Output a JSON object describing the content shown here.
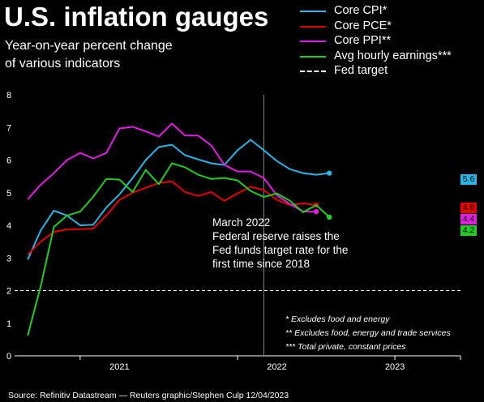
{
  "title": "U.S. inflation gauges",
  "subtitle_lines": [
    "Year-on-year percent change",
    "of various indicators"
  ],
  "legend": [
    {
      "label": "Core CPI*",
      "color": "#29b6e6",
      "dashed": false
    },
    {
      "label": "Core PCE*",
      "color": "#e60000",
      "dashed": false
    },
    {
      "label": "Core PPI**",
      "color": "#e01ee0",
      "dashed": false
    },
    {
      "label": "Avg hourly earnings***",
      "color": "#23cc23",
      "dashed": false
    },
    {
      "label": "Fed target",
      "color": "#ffffff",
      "dashed": true
    }
  ],
  "annotation_lines": [
    "March 2022",
    "Federal reserve raises the",
    "Fed funds target rate for the",
    "first time since 2018"
  ],
  "footnotes": [
    "* Excludes food and energy",
    "** Excludes food, energy and trade services",
    "*** Total private, constant prices"
  ],
  "source": "Source: Refinitiv Datastream — Reuters graphic/Stephen Culp 12/04/2023",
  "chart_data": {
    "type": "line",
    "x_unit": "month",
    "x_range": [
      "2020-08",
      "2023-06"
    ],
    "x_tick_labels": [
      "2021",
      "2022",
      "2023"
    ],
    "ylim": [
      0,
      8
    ],
    "y_ticks": [
      0,
      1,
      2,
      3,
      4,
      5,
      6,
      7,
      8
    ],
    "grid": false,
    "reference_line": {
      "label": "Fed target",
      "y": 2
    },
    "event_marker": {
      "label": "March 2022",
      "x": "2022-03"
    },
    "series": [
      {
        "name": "Core CPI*",
        "color": "#29b6e6",
        "end_label": "5.6",
        "points": [
          [
            "2020-09",
            2.95
          ],
          [
            "2020-10",
            3.85
          ],
          [
            "2020-11",
            4.45
          ],
          [
            "2020-12",
            4.3
          ],
          [
            "2021-01",
            4.0
          ],
          [
            "2021-02",
            4.02
          ],
          [
            "2021-03",
            4.55
          ],
          [
            "2021-04",
            4.95
          ],
          [
            "2021-05",
            5.45
          ],
          [
            "2021-06",
            6.0
          ],
          [
            "2021-07",
            6.4
          ],
          [
            "2021-08",
            6.47
          ],
          [
            "2021-09",
            6.15
          ],
          [
            "2021-10",
            6.02
          ],
          [
            "2021-11",
            5.9
          ],
          [
            "2021-12",
            5.85
          ],
          [
            "2022-01",
            6.3
          ],
          [
            "2022-02",
            6.62
          ],
          [
            "2022-03",
            6.3
          ],
          [
            "2022-04",
            5.97
          ],
          [
            "2022-05",
            5.72
          ],
          [
            "2022-06",
            5.6
          ],
          [
            "2022-07",
            5.55
          ],
          [
            "2022-08",
            5.6
          ]
        ]
      },
      {
        "name": "Core PCE*",
        "color": "#e60000",
        "end_label": "4.6",
        "points": [
          [
            "2020-09",
            3.1
          ],
          [
            "2020-10",
            3.5
          ],
          [
            "2020-11",
            3.8
          ],
          [
            "2020-12",
            3.87
          ],
          [
            "2021-01",
            3.88
          ],
          [
            "2021-02",
            3.9
          ],
          [
            "2021-03",
            4.3
          ],
          [
            "2021-04",
            4.78
          ],
          [
            "2021-05",
            5.0
          ],
          [
            "2021-06",
            5.15
          ],
          [
            "2021-07",
            5.3
          ],
          [
            "2021-08",
            5.35
          ],
          [
            "2021-09",
            5.02
          ],
          [
            "2021-10",
            4.9
          ],
          [
            "2021-11",
            5.02
          ],
          [
            "2021-12",
            4.75
          ],
          [
            "2022-01",
            4.98
          ],
          [
            "2022-02",
            5.18
          ],
          [
            "2022-03",
            5.08
          ],
          [
            "2022-04",
            4.78
          ],
          [
            "2022-05",
            4.62
          ],
          [
            "2022-06",
            4.67
          ],
          [
            "2022-07",
            4.62
          ]
        ]
      },
      {
        "name": "Core PPI**",
        "color": "#e01ee0",
        "end_label": "4.4",
        "points": [
          [
            "2020-09",
            4.8
          ],
          [
            "2020-10",
            5.25
          ],
          [
            "2020-11",
            5.6
          ],
          [
            "2020-12",
            6.0
          ],
          [
            "2021-01",
            6.22
          ],
          [
            "2021-02",
            6.05
          ],
          [
            "2021-03",
            6.22
          ],
          [
            "2021-04",
            6.97
          ],
          [
            "2021-05",
            7.02
          ],
          [
            "2021-06",
            6.88
          ],
          [
            "2021-07",
            6.72
          ],
          [
            "2021-08",
            7.12
          ],
          [
            "2021-09",
            6.75
          ],
          [
            "2021-10",
            6.75
          ],
          [
            "2021-11",
            6.45
          ],
          [
            "2021-12",
            5.85
          ],
          [
            "2022-01",
            5.65
          ],
          [
            "2022-02",
            5.65
          ],
          [
            "2022-03",
            5.45
          ],
          [
            "2022-04",
            4.92
          ],
          [
            "2022-05",
            4.65
          ],
          [
            "2022-06",
            4.42
          ],
          [
            "2022-07",
            4.42
          ]
        ]
      },
      {
        "name": "Avg hourly earnings***",
        "color": "#23cc23",
        "end_label": "4.2",
        "points": [
          [
            "2020-09",
            0.62
          ],
          [
            "2020-10",
            2.15
          ],
          [
            "2020-11",
            3.95
          ],
          [
            "2020-12",
            4.3
          ],
          [
            "2021-01",
            4.42
          ],
          [
            "2021-02",
            4.88
          ],
          [
            "2021-03",
            5.42
          ],
          [
            "2021-04",
            5.4
          ],
          [
            "2021-05",
            5.02
          ],
          [
            "2021-06",
            5.7
          ],
          [
            "2021-07",
            5.26
          ],
          [
            "2021-08",
            5.9
          ],
          [
            "2021-09",
            5.78
          ],
          [
            "2021-10",
            5.55
          ],
          [
            "2021-11",
            5.42
          ],
          [
            "2021-12",
            5.45
          ],
          [
            "2022-01",
            5.38
          ],
          [
            "2022-02",
            5.05
          ],
          [
            "2022-03",
            4.87
          ],
          [
            "2022-04",
            4.98
          ],
          [
            "2022-05",
            4.75
          ],
          [
            "2022-06",
            4.4
          ],
          [
            "2022-07",
            4.62
          ],
          [
            "2022-08",
            4.25
          ]
        ]
      }
    ]
  }
}
